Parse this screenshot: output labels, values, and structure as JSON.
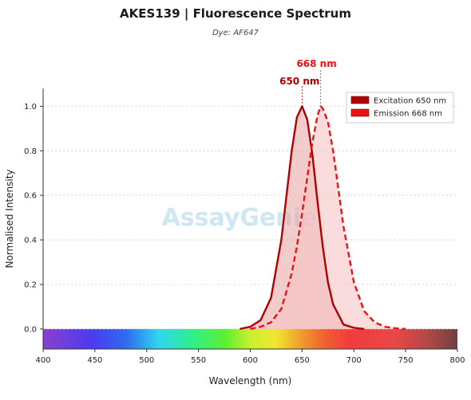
{
  "title": "AKES139  |  Fluorescence Spectrum",
  "subtitle": "Dye: AF647",
  "watermark": "AssayGenie",
  "chart_data": {
    "type": "area",
    "xlabel": "Wavelength (nm)",
    "ylabel": "Normalised Intensity",
    "xlim": [
      400,
      800
    ],
    "ylim": [
      -0.09,
      1.08
    ],
    "x_ticks": [
      400,
      450,
      500,
      550,
      600,
      650,
      700,
      750,
      800
    ],
    "y_ticks": [
      0.0,
      0.2,
      0.4,
      0.6,
      0.8,
      1.0
    ],
    "grid": "horizontal dotted",
    "legend": "top-right",
    "series": [
      {
        "name": "Excitation  650 nm",
        "peak_nm": 650,
        "peak_label": "650 nm",
        "line_style": "solid",
        "color": "#b00000",
        "fill": "#e8a0a0",
        "x": [
          590,
          600,
          610,
          620,
          630,
          635,
          640,
          645,
          650,
          655,
          660,
          665,
          670,
          675,
          680,
          690,
          700,
          710
        ],
        "values": [
          0.0,
          0.01,
          0.04,
          0.14,
          0.4,
          0.6,
          0.8,
          0.95,
          1.0,
          0.94,
          0.78,
          0.57,
          0.37,
          0.21,
          0.11,
          0.02,
          0.005,
          0.0
        ]
      },
      {
        "name": "Emission  668 nm",
        "peak_nm": 668,
        "peak_label": "668 nm",
        "line_style": "dashed",
        "color": "#ee1111",
        "fill": "#f8c4c4",
        "x": [
          600,
          610,
          620,
          630,
          640,
          645,
          650,
          655,
          660,
          665,
          668,
          670,
          675,
          680,
          685,
          690,
          700,
          710,
          720,
          730,
          740,
          750
        ],
        "values": [
          0.0,
          0.01,
          0.03,
          0.09,
          0.25,
          0.37,
          0.52,
          0.68,
          0.84,
          0.96,
          1.0,
          0.99,
          0.93,
          0.8,
          0.63,
          0.46,
          0.21,
          0.08,
          0.03,
          0.01,
          0.003,
          0.0
        ]
      }
    ]
  }
}
